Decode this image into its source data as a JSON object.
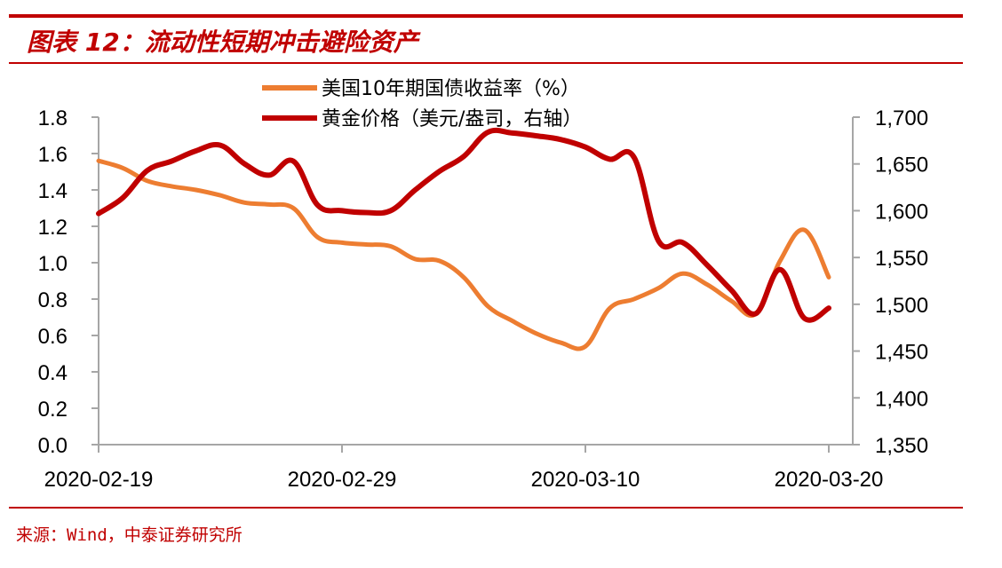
{
  "title": "图表 12：流动性短期冲击避险资产",
  "source": "来源：Wind，中泰证券研究所",
  "colors": {
    "accent": "#c00000",
    "yield_line": "#ed7d31",
    "gold_line": "#c00000",
    "axis": "#a6a6a6"
  },
  "chart_data": {
    "type": "line",
    "title": "图表 12：流动性短期冲击避险资产",
    "xlabel": "",
    "ylabel": "",
    "x_ticks": [
      "2020-02-19",
      "2020-02-29",
      "2020-03-10",
      "2020-03-20"
    ],
    "x_range": [
      0,
      30
    ],
    "left_axis": {
      "ylim": [
        0,
        1.8
      ],
      "ticks": [
        0,
        0.2,
        0.4,
        0.6,
        0.8,
        1.0,
        1.2,
        1.4,
        1.6,
        1.8
      ],
      "tick_labels": [
        "0.0",
        "0.2",
        "0.4",
        "0.6",
        "0.8",
        "1.0",
        "1.2",
        "1.4",
        "1.6",
        "1.8"
      ]
    },
    "right_axis": {
      "ylim": [
        1350,
        1700
      ],
      "ticks": [
        1350,
        1400,
        1450,
        1500,
        1550,
        1600,
        1650,
        1700
      ],
      "tick_labels": [
        "1,350",
        "1,400",
        "1,450",
        "1,500",
        "1,550",
        "1,600",
        "1,650",
        "1,700"
      ]
    },
    "legend": {
      "position": "top-center"
    },
    "series": [
      {
        "name": "美国10年期国债收益率（%）",
        "axis": "left",
        "color": "#ed7d31",
        "x": [
          0,
          1,
          2,
          3,
          4,
          5,
          6,
          7,
          8,
          9,
          10,
          11,
          12,
          13,
          14,
          15,
          16,
          17,
          18,
          19,
          20,
          21,
          22,
          23,
          24,
          25,
          26,
          27,
          28,
          29,
          30
        ],
        "values": [
          1.56,
          1.52,
          1.45,
          1.42,
          1.4,
          1.37,
          1.33,
          1.32,
          1.3,
          1.14,
          1.11,
          1.1,
          1.09,
          1.02,
          1.01,
          0.92,
          0.76,
          0.68,
          0.61,
          0.56,
          0.54,
          0.75,
          0.8,
          0.86,
          0.94,
          0.88,
          0.79,
          0.72,
          1.01,
          1.18,
          0.92
        ]
      },
      {
        "name": "黄金价格（美元/盎司，右轴）",
        "axis": "right",
        "color": "#c00000",
        "x": [
          0,
          1,
          2,
          3,
          4,
          5,
          6,
          7,
          8,
          9,
          10,
          11,
          12,
          13,
          14,
          15,
          16,
          17,
          18,
          19,
          20,
          21,
          22,
          23,
          24,
          25,
          26,
          27,
          28,
          29,
          30
        ],
        "values": [
          1597,
          1614,
          1643,
          1653,
          1664,
          1670,
          1650,
          1638,
          1653,
          1606,
          1600,
          1598,
          1600,
          1622,
          1642,
          1658,
          1684,
          1683,
          1680,
          1676,
          1668,
          1655,
          1657,
          1568,
          1566,
          1542,
          1515,
          1490,
          1537,
          1485,
          1496
        ]
      }
    ]
  }
}
